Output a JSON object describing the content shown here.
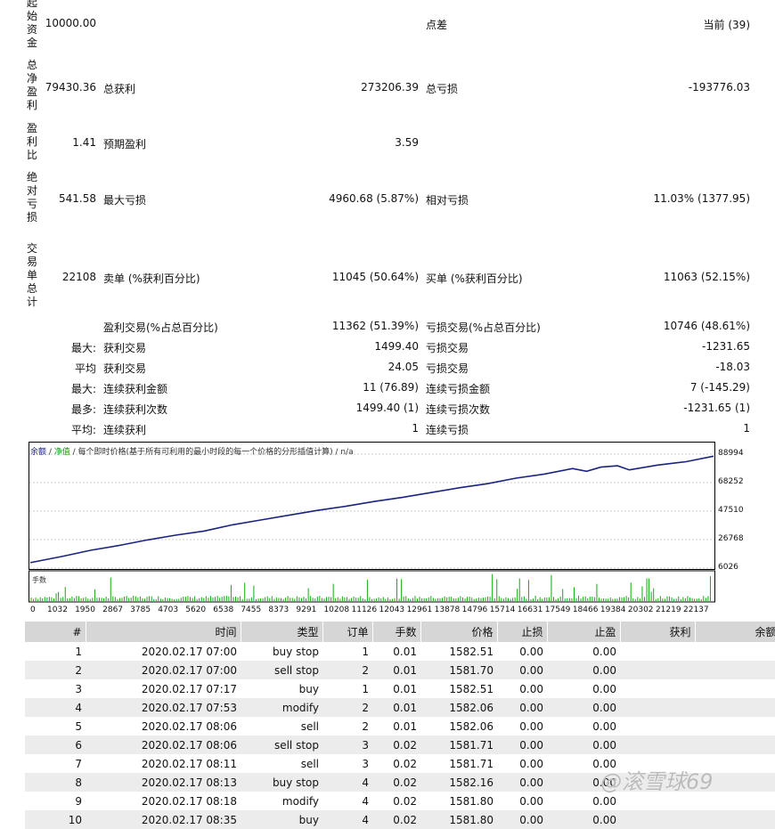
{
  "summary": {
    "initial_deposit": {
      "label": "起始资金",
      "value": "10000.00",
      "c4": "点差",
      "c5": "当前 (39)"
    },
    "net_profit": {
      "label": "总净盈利",
      "value": "79430.36",
      "c2": "总获利",
      "c3": "273206.39",
      "c4": "总亏损",
      "c5": "-193776.03"
    },
    "profit_factor": {
      "label": "盈利比",
      "value": "1.41",
      "c2": "预期盈利",
      "c3": "3.59"
    },
    "abs_drawdown": {
      "label": "绝对亏损",
      "value": "541.58",
      "c2": "最大亏损",
      "c3": "4960.68 (5.87%)",
      "c4": "相对亏损",
      "c5": "11.03% (1377.95)"
    },
    "total_trades": {
      "label": "交易单总计",
      "value": "22108",
      "c2": "卖单 (%获利百分比)",
      "c3": "11045 (50.64%)",
      "c4": "买单 (%获利百分比)",
      "c5": "11063 (52.15%)"
    },
    "rows": [
      {
        "c1": "",
        "c2": "盈利交易(%占总百分比)",
        "c3": "11362 (51.39%)",
        "c4": "亏损交易(%占总百分比)",
        "c5": "10746 (48.61%)"
      },
      {
        "c1": "最大:",
        "c2": "获利交易",
        "c3": "1499.40",
        "c4": "亏损交易",
        "c5": "-1231.65"
      },
      {
        "c1": "平均",
        "c2": "获利交易",
        "c3": "24.05",
        "c4": "亏损交易",
        "c5": "-18.03"
      },
      {
        "c1": "最大:",
        "c2": "连续获利金额",
        "c3": "11 (76.89)",
        "c4": "连续亏损金额",
        "c5": "7 (-145.29)"
      },
      {
        "c1": "最多:",
        "c2": "连续获利次数",
        "c3": "1499.40 (1)",
        "c4": "连续亏损次数",
        "c5": "-1231.65 (1)"
      },
      {
        "c1": "平均:",
        "c2": "连续获利",
        "c3": "1",
        "c4": "连续亏损",
        "c5": "1"
      }
    ]
  },
  "graph": {
    "legend_balance": "余额",
    "legend_sep1": " / ",
    "legend_equity": "净值",
    "legend_rest": " / 每个即时价格(基于所有可利用的最小时段的每一个价格的分形插值计算) / n/a",
    "volume_label": "手数",
    "colors": {
      "balance": "#1a237e",
      "equity": "#119911",
      "volume": "#11aa11",
      "grid": "#999999"
    }
  },
  "chart_data": {
    "type": "line",
    "x_ticks": [
      "0",
      "1032",
      "1950",
      "2867",
      "3785",
      "4703",
      "5620",
      "6538",
      "7455",
      "8373",
      "9291",
      "10208",
      "11126",
      "12043",
      "12961",
      "13878",
      "14796",
      "15714",
      "16631",
      "17549",
      "18466",
      "19384",
      "20302",
      "21219",
      "22137"
    ],
    "y_ticks": [
      "88994",
      "68252",
      "47510",
      "26768",
      "6026"
    ],
    "ylim": [
      6026,
      88994
    ],
    "xlim": [
      0,
      22108
    ],
    "series": [
      {
        "name": "余额",
        "x": [
          0,
          1032,
          1950,
          2867,
          3785,
          4703,
          5620,
          6538,
          7455,
          8373,
          9291,
          10208,
          11126,
          12043,
          12961,
          13878,
          14796,
          15714,
          16631,
          17549,
          18000,
          18466,
          19000,
          19384,
          20302,
          21219,
          22108
        ],
        "y": [
          10000,
          14500,
          19000,
          22500,
          26500,
          30000,
          33000,
          37500,
          41000,
          44500,
          48000,
          51000,
          54500,
          57500,
          61000,
          64500,
          67500,
          71500,
          74500,
          78500,
          76500,
          79500,
          80500,
          77500,
          81000,
          83500,
          87500
        ]
      }
    ]
  },
  "orders": {
    "headers": [
      "#",
      "时间",
      "类型",
      "订单",
      "手数",
      "价格",
      "止损",
      "止盈",
      "获利",
      "余额"
    ],
    "rows": [
      [
        "1",
        "2020.02.17 07:00",
        "buy stop",
        "1",
        "0.01",
        "1582.51",
        "0.00",
        "0.00",
        "",
        ""
      ],
      [
        "2",
        "2020.02.17 07:00",
        "sell stop",
        "2",
        "0.01",
        "1581.70",
        "0.00",
        "0.00",
        "",
        ""
      ],
      [
        "3",
        "2020.02.17 07:17",
        "buy",
        "1",
        "0.01",
        "1582.51",
        "0.00",
        "0.00",
        "",
        ""
      ],
      [
        "4",
        "2020.02.17 07:53",
        "modify",
        "2",
        "0.01",
        "1582.06",
        "0.00",
        "0.00",
        "",
        ""
      ],
      [
        "5",
        "2020.02.17 08:06",
        "sell",
        "2",
        "0.01",
        "1582.06",
        "0.00",
        "0.00",
        "",
        ""
      ],
      [
        "6",
        "2020.02.17 08:06",
        "sell stop",
        "3",
        "0.02",
        "1581.71",
        "0.00",
        "0.00",
        "",
        ""
      ],
      [
        "7",
        "2020.02.17 08:11",
        "sell",
        "3",
        "0.02",
        "1581.71",
        "0.00",
        "0.00",
        "",
        ""
      ],
      [
        "8",
        "2020.02.17 08:13",
        "buy stop",
        "4",
        "0.02",
        "1582.16",
        "0.00",
        "0.00",
        "",
        ""
      ],
      [
        "9",
        "2020.02.17 08:18",
        "modify",
        "4",
        "0.02",
        "1581.80",
        "0.00",
        "0.00",
        "",
        ""
      ],
      [
        "10",
        "2020.02.17 08:35",
        "buy",
        "4",
        "0.02",
        "1581.80",
        "0.00",
        "0.00",
        "",
        ""
      ]
    ]
  },
  "watermark": "@滚雪球69"
}
